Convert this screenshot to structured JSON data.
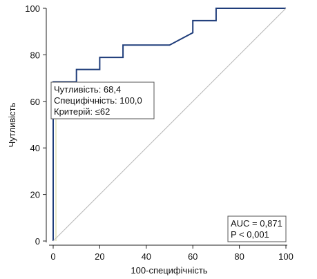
{
  "chart_data": {
    "type": "line",
    "xlabel": "100-специфічність",
    "ylabel": "Чутливість",
    "xlim": [
      0,
      100
    ],
    "ylim": [
      0,
      100
    ],
    "x_ticks": [
      "0",
      "20",
      "40",
      "60",
      "80",
      "100"
    ],
    "y_ticks": [
      "0",
      "20",
      "40",
      "60",
      "80",
      "100"
    ],
    "grid": false,
    "series": [
      {
        "type": "step",
        "color": "#1f3d7a",
        "x": [
          0,
          0,
          0,
          10,
          10,
          20,
          20,
          30,
          30,
          50,
          60,
          60,
          70,
          70,
          100
        ],
        "y": [
          0,
          63,
          68.4,
          68.4,
          73.7,
          73.7,
          78.9,
          78.9,
          84.2,
          84.2,
          89.5,
          94.7,
          94.7,
          100,
          100
        ]
      },
      {
        "type": "reference",
        "color": "#b8b8b8",
        "x": [
          0,
          100
        ],
        "y": [
          0,
          100
        ]
      }
    ],
    "criterion_marker": {
      "x": 0,
      "y": 68.4,
      "color": "#e8e8c8"
    },
    "criterion_box": {
      "lines": [
        "Чутливість: 68,4",
        "Специфічність: 100,0",
        "Критерій: ≤62"
      ]
    },
    "stats_box": {
      "lines": [
        "AUC = 0,871",
        "P < 0,001"
      ]
    }
  }
}
